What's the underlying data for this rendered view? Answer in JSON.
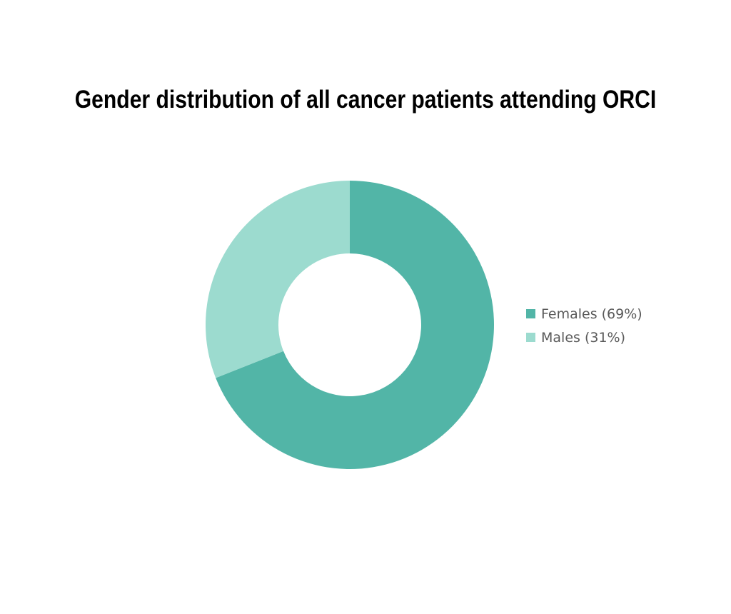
{
  "chart_data": {
    "type": "pie",
    "variant": "donut",
    "title": "Gender distribution of all cancer patients attending ORCI",
    "categories": [
      "Females",
      "Males"
    ],
    "values": [
      69,
      31
    ],
    "unit": "%",
    "legend_labels": [
      "Females (69%)",
      "Males (31%)"
    ],
    "colors": [
      "#52b5a7",
      "#9cdbcf"
    ],
    "legend_position": "right",
    "start_angle": "12 o'clock, clockwise",
    "grid": false
  }
}
